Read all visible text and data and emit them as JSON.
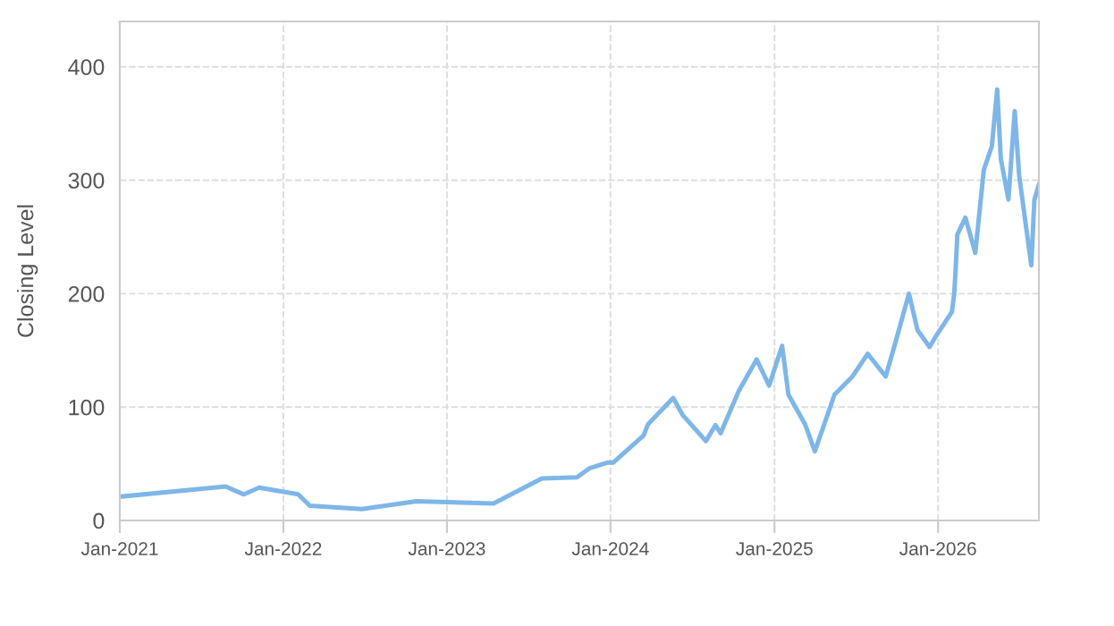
{
  "chart_data": {
    "type": "line",
    "ylabel": "Closing Level",
    "color": "#7eb6e8",
    "x": [
      "2021-01-01",
      "2021-08-25",
      "2021-10-05",
      "2021-11-08",
      "2022-02-03",
      "2022-03-01",
      "2022-06-25",
      "2022-10-25",
      "2023-04-15",
      "2023-08-01",
      "2023-10-18",
      "2023-11-15",
      "2023-12-25",
      "2024-01-07",
      "2024-03-15",
      "2024-03-25",
      "2024-05-20",
      "2024-06-10",
      "2024-08-01",
      "2024-08-22",
      "2024-09-03",
      "2024-10-13",
      "2024-11-22",
      "2024-12-20",
      "2025-01-18",
      "2025-02-01",
      "2025-03-10",
      "2025-04-01",
      "2025-05-15",
      "2025-06-24",
      "2025-07-28",
      "2025-09-06",
      "2025-09-25",
      "2025-10-28",
      "2025-11-16",
      "2025-12-13",
      "2025-12-28",
      "2026-02-01",
      "2026-02-06",
      "2026-02-09",
      "2026-02-13",
      "2026-03-03",
      "2026-03-25",
      "2026-04-13",
      "2026-05-01",
      "2026-05-13",
      "2026-05-21",
      "2026-06-07",
      "2026-06-21",
      "2026-07-01",
      "2026-07-28",
      "2026-08-04",
      "2026-08-14"
    ],
    "values": [
      21,
      30,
      23,
      29,
      23,
      13,
      10,
      17,
      15,
      37,
      38,
      46,
      51,
      51,
      75,
      85,
      108,
      93,
      70,
      84,
      77,
      114,
      142,
      119,
      154,
      111,
      85,
      61,
      111,
      127,
      147,
      127,
      153,
      200,
      168,
      153,
      163,
      184,
      200,
      220,
      252,
      267,
      236,
      309,
      330,
      380,
      319,
      283,
      361,
      304,
      225,
      283,
      296
    ],
    "xlim": [
      "2021-01-01",
      "2026-08-14"
    ],
    "xticks": [
      {
        "value": "2021-01-01",
        "label": "Jan-2021"
      },
      {
        "value": "2022-01-01",
        "label": "Jan-2022"
      },
      {
        "value": "2023-01-01",
        "label": "Jan-2023"
      },
      {
        "value": "2024-01-01",
        "label": "Jan-2024"
      },
      {
        "value": "2025-01-01",
        "label": "Jan-2025"
      },
      {
        "value": "2026-01-01",
        "label": "Jan-2026"
      }
    ],
    "ylim": [
      0,
      440
    ],
    "yticks": [
      0,
      100,
      200,
      300,
      400
    ],
    "grid": true
  }
}
